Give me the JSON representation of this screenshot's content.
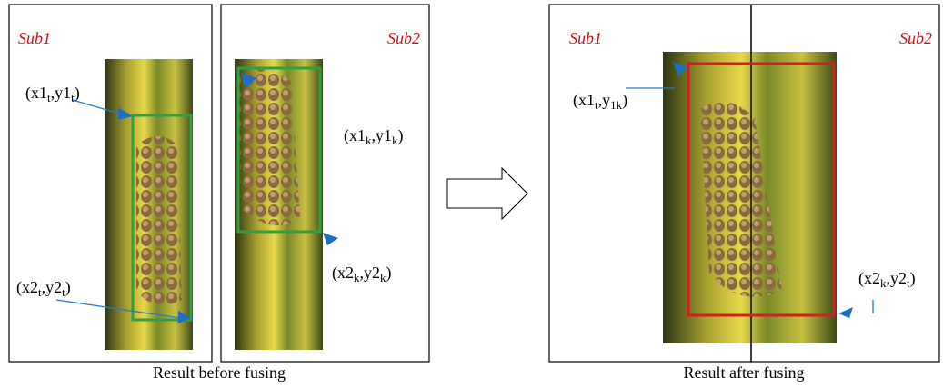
{
  "left": {
    "panel1": {
      "tag": "Sub1"
    },
    "panel2": {
      "tag": "Sub2"
    },
    "caption": "Result before fusing",
    "points": [
      {
        "parts": [
          "(x1",
          "t",
          ",y1",
          "t",
          ")"
        ]
      },
      {
        "parts": [
          "(x2",
          "t",
          ",y2",
          "t",
          ")"
        ]
      },
      {
        "parts": [
          "(x1",
          "k",
          ",y1",
          "k",
          ")"
        ]
      },
      {
        "parts": [
          "(x2",
          "k",
          ",y2",
          "k",
          ")"
        ]
      }
    ]
  },
  "right": {
    "tags": [
      "Sub1",
      "Sub2"
    ],
    "caption": "Result after fusing",
    "points": [
      {
        "parts": [
          "(x1",
          "t",
          ",y",
          "1k",
          ")"
        ]
      },
      {
        "parts": [
          "(x2",
          "k",
          ",y2",
          "t",
          ")"
        ]
      }
    ]
  }
}
